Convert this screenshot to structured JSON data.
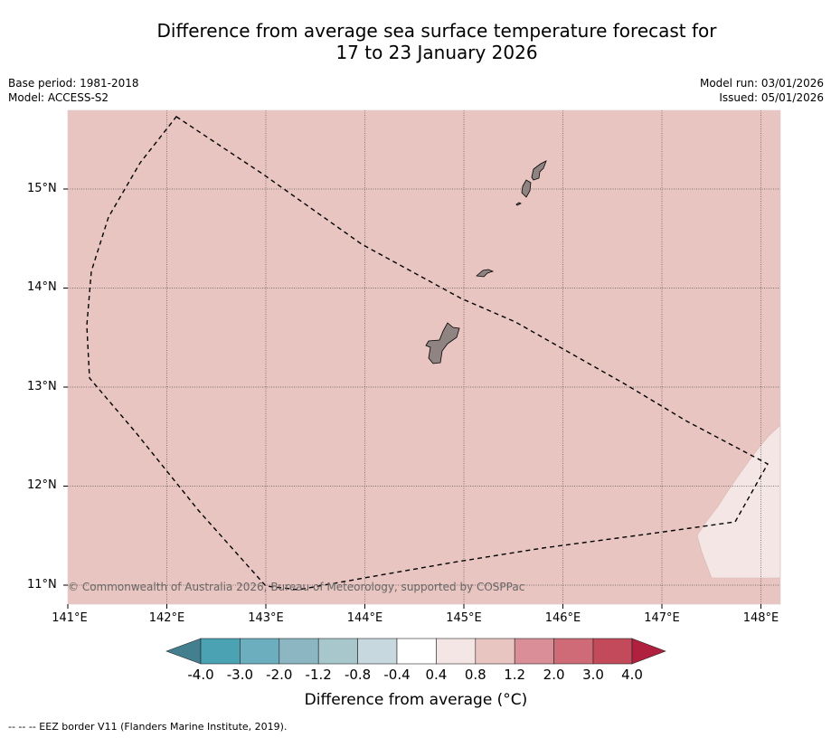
{
  "title_line1": "Difference from average sea surface temperature forecast for",
  "title_line2": "17 to 23 January 2026",
  "base_period": "Base period: 1981-2018",
  "model": "Model: ACCESS-S2",
  "model_run": "Model run: 03/01/2026",
  "issued": "Issued: 05/01/2026",
  "map": {
    "latitude_labels": [
      "15°N",
      "14°N",
      "13°N",
      "12°N",
      "11°N"
    ],
    "longitude_labels": [
      "141°E",
      "142°E",
      "143°E",
      "144°E",
      "145°E",
      "146°E",
      "147°E",
      "148°E"
    ],
    "copyright": "© Commonwealth of Australia 2026, Bureau of Meteorology, supported by COSPPac",
    "background_anomaly_class": "0.8 to 1.2",
    "southeast_anomaly_class": "0.4 to 0.8",
    "islands": [
      "Guam",
      "Rota",
      "Tinian-Saipan"
    ],
    "border": "EEZ"
  },
  "colorbar": {
    "labels": [
      "-4.0",
      "-3.0",
      "-2.0",
      "-1.2",
      "-0.8",
      "-0.4",
      "0.4",
      "0.8",
      "1.2",
      "2.0",
      "3.0",
      "4.0"
    ],
    "colors": [
      "#447f8f",
      "#4aa2b3",
      "#6cadbe",
      "#8bb6c2",
      "#a8c7cc",
      "#c7d9de",
      "#ffffff",
      "#f5e6e6",
      "#e8c5c1",
      "#da8e98",
      "#cf6b76",
      "#c24a5a",
      "#b0203f"
    ],
    "title": "Difference from average (°C)"
  },
  "footnote": "--  --  -- EEZ border V11 (Flanders Marine Institute, 2019).",
  "colors": {
    "map_fill": "#e8c5c1",
    "light_fill": "#f5e6e6",
    "land": "#8f8482"
  }
}
